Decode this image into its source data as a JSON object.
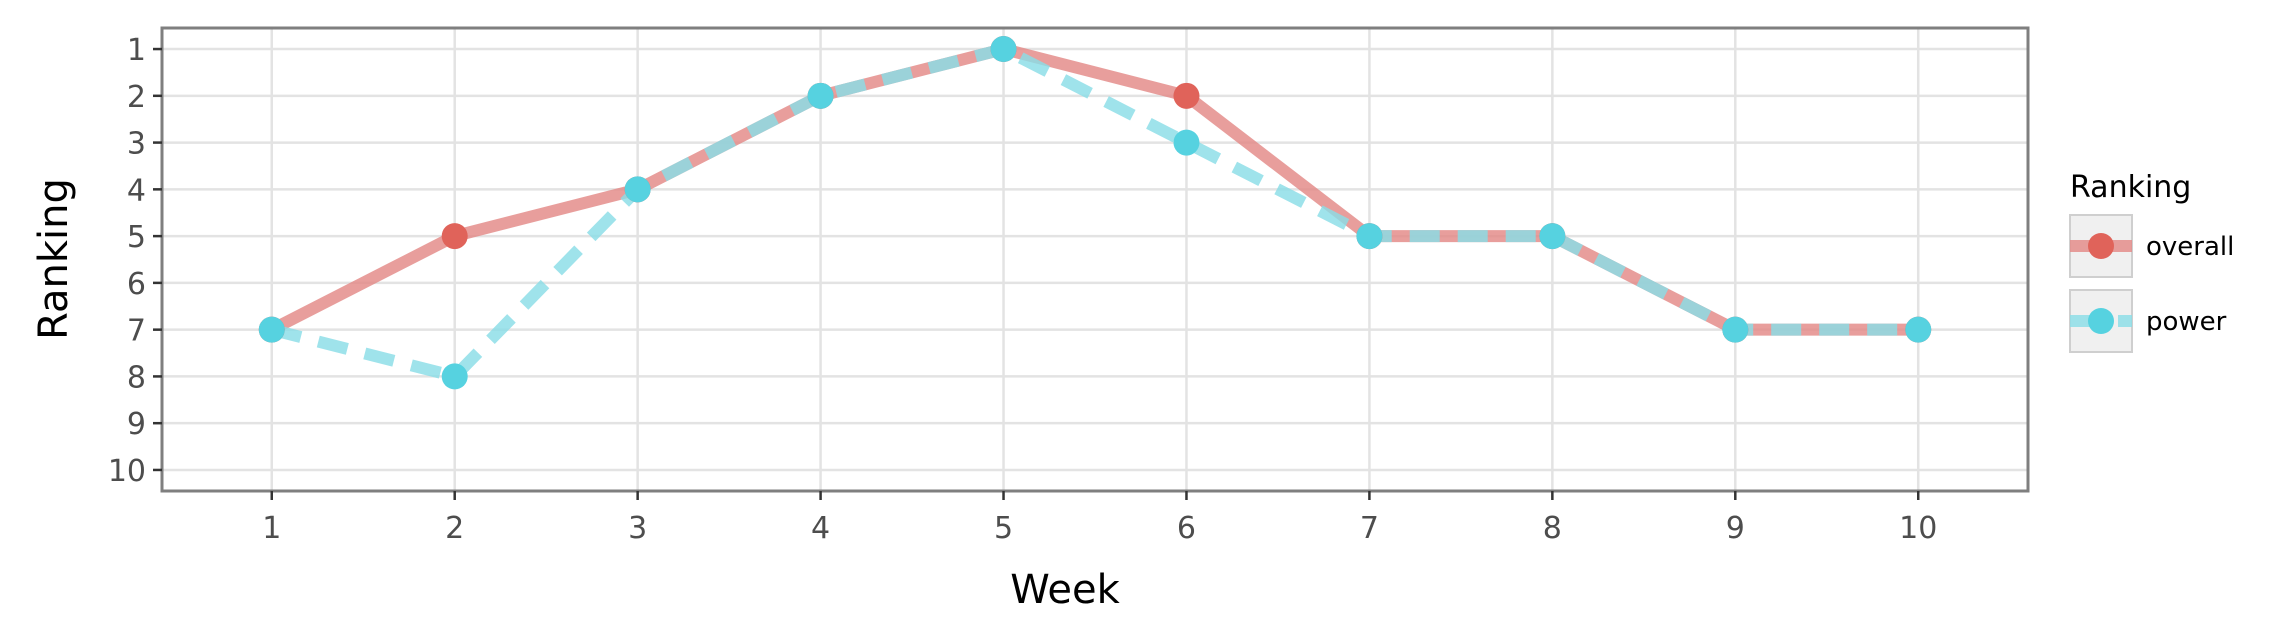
{
  "chart_data": {
    "type": "line",
    "xlabel": "Week",
    "ylabel": "Ranking",
    "x": [
      1,
      2,
      3,
      4,
      5,
      6,
      7,
      8,
      9,
      10
    ],
    "x_ticks": [
      "1",
      "2",
      "3",
      "4",
      "5",
      "6",
      "7",
      "8",
      "9",
      "10"
    ],
    "y_ticks": [
      "1",
      "2",
      "3",
      "4",
      "5",
      "6",
      "7",
      "8",
      "9",
      "10"
    ],
    "xlim": [
      0.4,
      10.6
    ],
    "ylim": [
      10.45,
      0.55
    ],
    "y_reversed": true,
    "grid": true,
    "legend": {
      "title": "Ranking",
      "position": "right"
    },
    "series": [
      {
        "name": "overall",
        "values": [
          7,
          5,
          4,
          2,
          1,
          2,
          5,
          5,
          7,
          7
        ],
        "color": "#e0635a",
        "line_color": "#e38986",
        "line_style": "solid"
      },
      {
        "name": "power",
        "values": [
          7,
          8,
          4,
          2,
          1,
          3,
          5,
          5,
          7,
          7
        ],
        "color": "#56d2e0",
        "line_color": "#8addE7",
        "line_style": "dashed"
      }
    ]
  }
}
